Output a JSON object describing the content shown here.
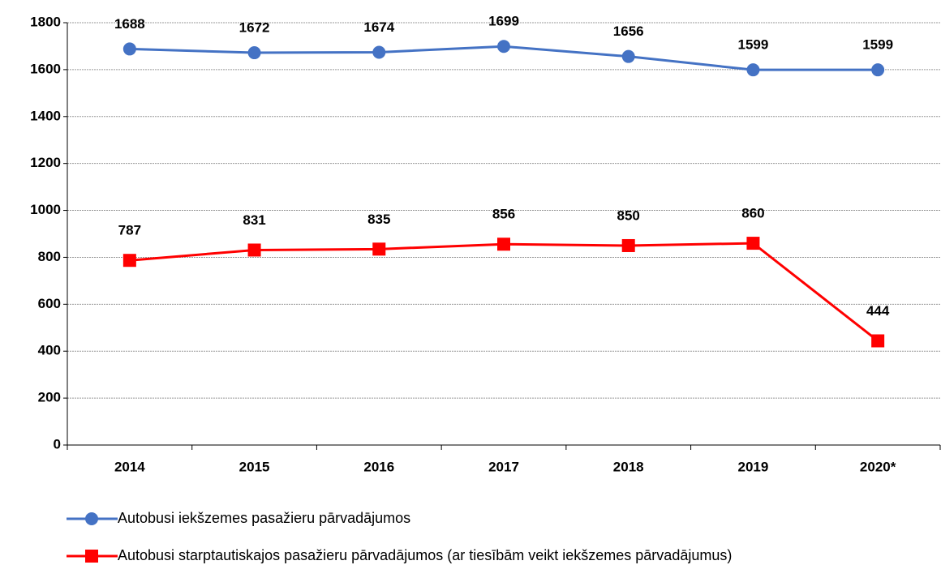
{
  "chart_data": {
    "type": "line",
    "categories": [
      "2014",
      "2015",
      "2016",
      "2017",
      "2018",
      "2019",
      "2020*"
    ],
    "series": [
      {
        "name": "Autobusi iekšzemes  pasažieru pārvadājumos",
        "color": "#4472c4",
        "marker": "circle",
        "values": [
          1688,
          1672,
          1674,
          1699,
          1656,
          1599,
          1599
        ]
      },
      {
        "name": "Autobusi starptautiskajos  pasažieru pārvadājumos (ar tiesībām veikt iekšzemes pārvadājumus)",
        "color": "#ff0000",
        "marker": "square",
        "values": [
          787,
          831,
          835,
          856,
          850,
          860,
          444
        ]
      }
    ],
    "ylim": [
      0,
      1800
    ],
    "yticks": [
      0,
      200,
      400,
      600,
      800,
      1000,
      1200,
      1400,
      1600,
      1800
    ],
    "grid": true,
    "legend": "bottom"
  }
}
